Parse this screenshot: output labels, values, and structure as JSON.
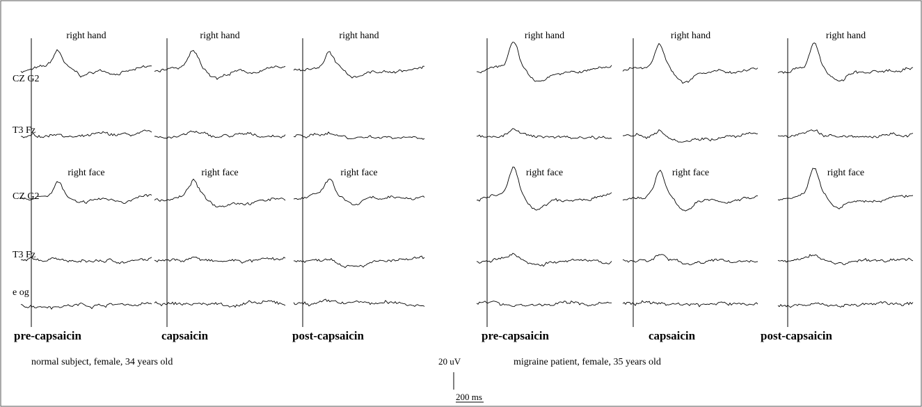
{
  "row_labels": [
    "CZ G2",
    "T3 Fz",
    "CZ G2",
    "T3 Fz",
    "e og"
  ],
  "panels": [
    {
      "caption": "normal subject, female, 34 years old",
      "columns": [
        {
          "condition": "pre-capsaicin",
          "stimuli": [
            "right hand",
            "right face"
          ]
        },
        {
          "condition": "capsaicin",
          "stimuli": [
            "right hand",
            "right face"
          ]
        },
        {
          "condition": "post-capsaicin",
          "stimuli": [
            "right hand",
            "right face"
          ]
        }
      ]
    },
    {
      "caption": "migraine patient, female, 35 years old",
      "columns": [
        {
          "condition": "pre-capsaicin",
          "stimuli": [
            "right hand",
            "right face"
          ]
        },
        {
          "condition": "capsaicin",
          "stimuli": [
            "right hand",
            "right face"
          ]
        },
        {
          "condition": "post-capsaicin",
          "stimuli": [
            "right hand",
            "right face"
          ]
        }
      ]
    }
  ],
  "scale_bar": {
    "amplitude": "20 uV",
    "time": "200 ms"
  }
}
